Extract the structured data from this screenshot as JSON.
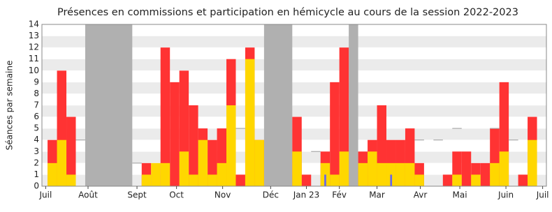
{
  "chart_data": {
    "type": "bar",
    "title": "Présences en commissions et participation en hémicycle au cours de la session 2022-2023",
    "y_label": "Séances par semaine",
    "ylim": [
      0,
      14
    ],
    "yticks": [
      0,
      1,
      2,
      3,
      4,
      5,
      6,
      7,
      8,
      9,
      10,
      11,
      12,
      13,
      14
    ],
    "xlim": [
      -0.6,
      53
    ],
    "xticks": [
      {
        "value": -0.2,
        "label": "Juil"
      },
      {
        "value": 4.3,
        "label": "Août"
      },
      {
        "value": 9.5,
        "label": "Sept"
      },
      {
        "value": 13.7,
        "label": "Oct"
      },
      {
        "value": 18.6,
        "label": "Nov"
      },
      {
        "value": 23.7,
        "label": "Déc"
      },
      {
        "value": 27.5,
        "label": "Jan 23"
      },
      {
        "value": 31,
        "label": "Fév"
      },
      {
        "value": 35,
        "label": "Mar"
      },
      {
        "value": 39.6,
        "label": "Avr"
      },
      {
        "value": 43.8,
        "label": "Mai"
      },
      {
        "value": 48.7,
        "label": "Juin"
      },
      {
        "value": 52.6,
        "label": "Juil"
      }
    ],
    "shaded": [
      [
        4,
        9
      ],
      [
        23,
        26
      ],
      [
        32,
        33
      ]
    ],
    "series": [
      {
        "color": "#ff3333",
        "values": [
          4,
          10,
          6,
          0,
          0,
          0,
          0,
          0,
          0,
          0,
          2,
          0,
          12,
          9,
          10,
          7,
          5,
          4,
          5,
          11,
          1,
          12,
          4,
          0,
          0,
          0,
          6,
          1,
          0,
          3,
          9,
          12,
          0,
          3,
          4,
          7,
          4,
          4,
          5,
          2,
          0,
          0,
          1,
          3,
          3,
          2,
          2,
          5,
          9,
          0,
          1,
          6,
          0
        ]
      },
      {
        "color": "#ffd700",
        "values": [
          2,
          4,
          1,
          0,
          0,
          0,
          0,
          0,
          0,
          0,
          1,
          2,
          2,
          0,
          3,
          1,
          4,
          1,
          2,
          7,
          0,
          11,
          4,
          0,
          0,
          0,
          3,
          0,
          0,
          2,
          1,
          3,
          0,
          2,
          3,
          2,
          2,
          2,
          2,
          1,
          0,
          0,
          0,
          1,
          0,
          1,
          0,
          2,
          3,
          0,
          0,
          4,
          0
        ]
      },
      {
        "color": "#6666ee",
        "thin": true,
        "values": [
          0,
          0,
          0,
          0,
          0,
          0,
          0,
          0,
          0,
          0,
          0,
          0,
          0,
          0,
          0,
          0,
          0,
          0,
          0,
          0,
          0,
          0,
          0,
          0,
          0,
          0,
          0,
          0,
          0,
          1,
          0,
          0,
          0,
          0,
          0,
          0,
          1,
          0,
          0,
          0,
          0,
          0,
          0,
          0,
          0,
          0,
          0,
          0,
          0,
          0,
          0,
          0,
          0
        ]
      },
      {
        "color": "#aaaaaa",
        "reference": true,
        "values": [
          null,
          null,
          null,
          4,
          null,
          null,
          null,
          null,
          null,
          2,
          null,
          null,
          null,
          null,
          null,
          null,
          null,
          null,
          null,
          null,
          5,
          null,
          null,
          null,
          null,
          null,
          null,
          null,
          3,
          null,
          null,
          null,
          null,
          null,
          null,
          null,
          null,
          null,
          null,
          4,
          null,
          4,
          null,
          5,
          null,
          null,
          null,
          5,
          null,
          4,
          null,
          null,
          null
        ]
      }
    ]
  }
}
